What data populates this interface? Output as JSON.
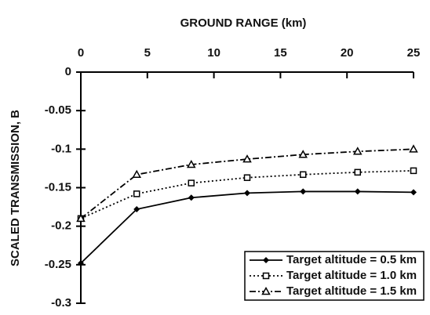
{
  "chart_data": {
    "type": "line",
    "xlabel": "GROUND RANGE (km)",
    "ylabel": "SCALED TRANSMISSION, B",
    "x": [
      0,
      4.2,
      8.3,
      12.5,
      16.7,
      20.8,
      25
    ],
    "series": [
      {
        "name": "Target altitude = 0.5 km",
        "color": "#000000",
        "dash": "solid",
        "marker": "diamond",
        "values": [
          -0.248,
          -0.178,
          -0.163,
          -0.157,
          -0.155,
          -0.155,
          -0.156
        ]
      },
      {
        "name": "Target altitude = 1.0 km",
        "color": "#000000",
        "dash": "dotted",
        "marker": "square",
        "values": [
          -0.19,
          -0.158,
          -0.144,
          -0.137,
          -0.133,
          -0.13,
          -0.128
        ]
      },
      {
        "name": "Target altitude = 1.5 km",
        "color": "#000000",
        "dash": "dashdot",
        "marker": "triangle",
        "values": [
          -0.19,
          -0.133,
          -0.12,
          -0.113,
          -0.107,
          -0.103,
          -0.1
        ]
      }
    ],
    "xlim": [
      0,
      25
    ],
    "xticks": [
      0,
      5,
      10,
      15,
      20,
      25
    ],
    "ylim": [
      -0.3,
      0
    ],
    "yticks": [
      0,
      -0.05,
      -0.1,
      -0.15,
      -0.2,
      -0.25,
      -0.3
    ],
    "legend": "lower right",
    "grid": false
  }
}
